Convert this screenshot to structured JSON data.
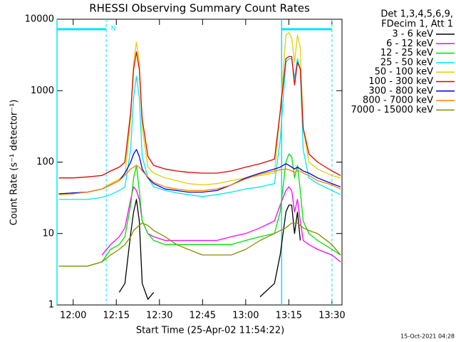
{
  "chart_data": {
    "type": "line",
    "title": "RHESSI Observing Summary Count Rates",
    "xlabel": "Start Time (25-Apr-02 11:54:22)",
    "ylabel": "Count Rate (s⁻¹ detector⁻¹)",
    "legend_header": [
      "Det 1,3,4,5,6,9,",
      "FDecim 1, Att 1"
    ],
    "footer": "15-Oct-2021 04:28",
    "night_label": "N",
    "night_intervals": [
      [
        714.37,
        731.5
      ],
      [
        792.5,
        810
      ]
    ],
    "night_color": "#00e5ff",
    "log_y": true,
    "xlim": [
      714.37,
      813.5
    ],
    "ylim": [
      1,
      10000
    ],
    "xticks": [
      {
        "value": 720,
        "label": "12:00"
      },
      {
        "value": 735,
        "label": "12:15"
      },
      {
        "value": 750,
        "label": "12:30"
      },
      {
        "value": 765,
        "label": "12:45"
      },
      {
        "value": 780,
        "label": "13:00"
      },
      {
        "value": 795,
        "label": "13:15"
      },
      {
        "value": 810,
        "label": "13:30"
      }
    ],
    "yticks": [
      1,
      10,
      100,
      1000,
      10000
    ],
    "x": [
      715,
      720,
      725,
      730,
      733,
      736,
      738,
      740,
      741,
      742,
      743,
      744,
      746,
      748,
      752,
      756,
      760,
      765,
      770,
      775,
      780,
      785,
      790,
      792,
      794,
      795,
      796,
      797,
      798,
      799,
      800,
      802,
      805,
      810,
      813
    ],
    "series": [
      {
        "name": "3 - 6 keV",
        "color": "#000000",
        "values": [
          null,
          null,
          null,
          null,
          null,
          1.5,
          2,
          10,
          20,
          30,
          15,
          2,
          1.2,
          1.5,
          null,
          null,
          null,
          null,
          null,
          null,
          null,
          1.3,
          2,
          5,
          20,
          25,
          25,
          10,
          20,
          8,
          null,
          null,
          null,
          null,
          null
        ]
      },
      {
        "name": "6 - 12 keV",
        "color": "#ff00ff",
        "values": [
          null,
          null,
          null,
          5,
          7,
          9,
          12,
          30,
          45,
          40,
          30,
          15,
          10,
          9,
          8,
          8,
          8,
          8,
          8,
          9,
          10,
          12,
          15,
          25,
          40,
          45,
          40,
          20,
          30,
          15,
          8,
          7,
          6,
          5,
          4
        ]
      },
      {
        "name": "12 - 25 keV",
        "color": "#00e000",
        "values": [
          3.5,
          3.5,
          3.5,
          4,
          6,
          7,
          9,
          25,
          60,
          90,
          40,
          15,
          10,
          8,
          7,
          7,
          7,
          7,
          7,
          7,
          8,
          9,
          10,
          20,
          100,
          130,
          120,
          60,
          90,
          40,
          15,
          10,
          8,
          6,
          5
        ]
      },
      {
        "name": "25 - 50 keV",
        "color": "#00e5ff",
        "values": [
          30,
          30,
          30,
          32,
          35,
          40,
          45,
          150,
          800,
          1600,
          800,
          120,
          60,
          45,
          40,
          37,
          35,
          33,
          35,
          38,
          42,
          45,
          50,
          200,
          2500,
          2800,
          2800,
          1500,
          2800,
          2000,
          150,
          60,
          50,
          40,
          35
        ]
      },
      {
        "name": "50 - 100 keV",
        "color": "#e0d000",
        "values": [
          36,
          36,
          38,
          42,
          50,
          58,
          65,
          400,
          2500,
          4800,
          2500,
          300,
          85,
          70,
          60,
          55,
          50,
          48,
          50,
          55,
          60,
          65,
          70,
          500,
          6000,
          6500,
          5500,
          2500,
          6000,
          4000,
          300,
          100,
          80,
          65,
          60
        ]
      },
      {
        "name": "100 - 300 keV",
        "color": "#e00000",
        "values": [
          60,
          60,
          62,
          65,
          75,
          85,
          100,
          500,
          2000,
          3500,
          2000,
          400,
          120,
          90,
          80,
          75,
          72,
          70,
          70,
          75,
          85,
          95,
          110,
          500,
          2800,
          3000,
          3000,
          1200,
          2500,
          2000,
          300,
          130,
          100,
          75,
          65
        ]
      },
      {
        "name": "300 - 800 keV",
        "color": "#0000e0",
        "values": [
          36,
          37,
          38,
          42,
          48,
          55,
          70,
          100,
          130,
          150,
          120,
          80,
          60,
          50,
          42,
          40,
          38,
          38,
          40,
          48,
          60,
          70,
          80,
          85,
          95,
          90,
          85,
          80,
          85,
          80,
          75,
          70,
          60,
          50,
          45
        ]
      },
      {
        "name": "800 - 7000 keV",
        "color": "#ff8000",
        "values": [
          35,
          36,
          38,
          42,
          48,
          55,
          65,
          80,
          85,
          90,
          85,
          75,
          62,
          52,
          45,
          42,
          40,
          40,
          42,
          48,
          58,
          68,
          75,
          78,
          80,
          78,
          75,
          72,
          75,
          75,
          70,
          65,
          55,
          48,
          42
        ]
      },
      {
        "name": "7000 - 15000 keV",
        "color": "#8b8b00",
        "values": [
          3.5,
          3.5,
          3.5,
          4,
          5,
          6,
          7,
          9,
          11,
          12,
          13,
          14,
          13,
          11,
          9,
          7,
          6,
          5,
          5,
          5,
          6,
          8,
          10,
          11,
          12,
          13,
          14,
          14,
          14,
          13,
          12,
          11,
          10,
          7,
          5
        ]
      }
    ]
  }
}
